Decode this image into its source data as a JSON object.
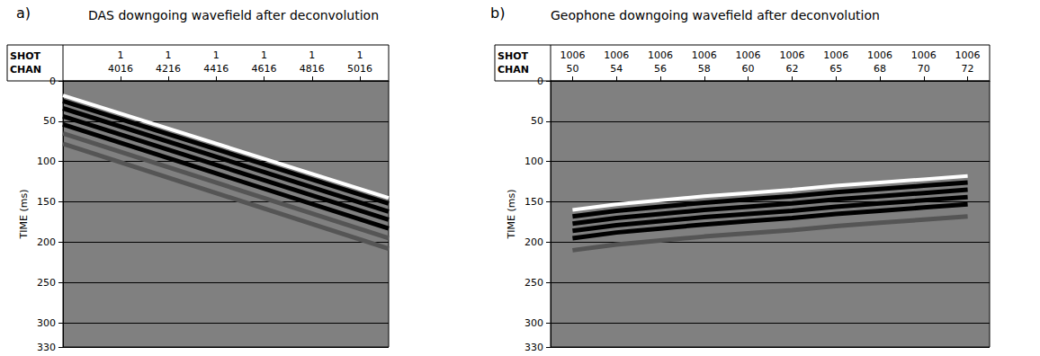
{
  "chart_data": [
    {
      "type": "line",
      "panel": "a)",
      "title": "DAS downgoing wavefield after deconvolution",
      "x_row_labels": [
        "SHOT",
        "CHAN"
      ],
      "shots": [
        1,
        1,
        1,
        1,
        1,
        1
      ],
      "xlim": [
        3776,
        5136
      ],
      "xticks": [
        4016,
        4216,
        4416,
        4616,
        4816,
        5016
      ],
      "ylabel": "TIME (ms)",
      "ylim": [
        0,
        330
      ],
      "yticks": [
        0,
        50,
        100,
        150,
        200,
        250,
        300
      ],
      "grid": true,
      "x": [
        3776,
        5136
      ],
      "series": [
        {
          "color": "#ffffff",
          "values": [
            18,
            145
          ]
        },
        {
          "color": "#000000",
          "values": [
            25,
            152
          ]
        },
        {
          "color": "#000000",
          "values": [
            34,
            162
          ]
        },
        {
          "color": "#000000",
          "values": [
            44,
            172
          ]
        },
        {
          "color": "#000000",
          "values": [
            54,
            183
          ]
        },
        {
          "color": "#555555",
          "values": [
            65,
            195
          ]
        },
        {
          "color": "#555555",
          "values": [
            78,
            208
          ]
        }
      ]
    },
    {
      "type": "line",
      "panel": "b)",
      "title": "Geophone downgoing wavefield after deconvolution",
      "x_row_labels": [
        "SHOT",
        "CHAN"
      ],
      "shots": [
        1006,
        1006,
        1006,
        1006,
        1006,
        1006,
        1006,
        1006,
        1006,
        1006
      ],
      "categories": [
        "50",
        "54",
        "56",
        "58",
        "60",
        "62",
        "65",
        "68",
        "70",
        "72"
      ],
      "ylabel": "TIME (ms)",
      "ylim": [
        0,
        330
      ],
      "yticks": [
        0,
        50,
        100,
        150,
        200,
        250,
        300
      ],
      "grid": true,
      "series": [
        {
          "color": "#ffffff",
          "values": [
            160,
            153,
            148,
            143,
            139,
            135,
            130,
            126,
            122,
            118
          ]
        },
        {
          "color": "#000000",
          "values": [
            168,
            161,
            156,
            151,
            147,
            143,
            138,
            134,
            130,
            126
          ]
        },
        {
          "color": "#000000",
          "values": [
            177,
            170,
            165,
            160,
            156,
            152,
            147,
            143,
            139,
            135
          ]
        },
        {
          "color": "#000000",
          "values": [
            186,
            179,
            174,
            169,
            165,
            161,
            156,
            152,
            148,
            144
          ]
        },
        {
          "color": "#000000",
          "values": [
            195,
            188,
            183,
            178,
            174,
            170,
            165,
            161,
            157,
            153
          ]
        },
        {
          "color": "#555555",
          "values": [
            210,
            203,
            198,
            193,
            189,
            185,
            180,
            176,
            172,
            168
          ]
        }
      ]
    }
  ]
}
